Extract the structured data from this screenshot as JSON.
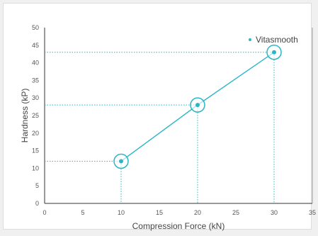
{
  "chart_data": {
    "type": "line",
    "title": "",
    "xlabel": "Compression Force (kN)",
    "ylabel": "Hardness (kP)",
    "xlim": [
      0,
      35
    ],
    "ylim": [
      0,
      50
    ],
    "x_ticks": [
      0,
      5,
      10,
      15,
      20,
      25,
      30,
      35
    ],
    "y_ticks": [
      0,
      5,
      10,
      15,
      20,
      25,
      30,
      35,
      40,
      45,
      50
    ],
    "grid": false,
    "legend_position": "top-right",
    "series": [
      {
        "name": "Vitasmooth",
        "color": "#29b6c6",
        "x": [
          10,
          20,
          30
        ],
        "y": [
          12,
          28,
          43
        ],
        "markers": "open-circle-with-dot",
        "projection_lines": "dotted"
      }
    ]
  }
}
